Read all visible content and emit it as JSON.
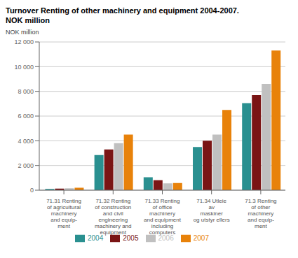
{
  "chart_data": {
    "type": "bar",
    "title": "Turnover Renting of other machinery and equipment 2004-2007.",
    "subtitle": "NOK million",
    "ylabel": "NOK million",
    "categories": [
      "71.31 Renting\nof agricultural\nmachinery\nand equip-\nment",
      "71.32 Renting\nof construction\nand civil\nengineering\nmachinery and\nequipment",
      "71.33 Renting\nof office\nmachinery\nand equipment\nincluding\ncomputers",
      "71.34 Utleie\nav\nmaskiner\nog utstyr ellers",
      "71.3 Renting\nof other\nmachinery\nand equip-\nment"
    ],
    "series": [
      {
        "name": "2004",
        "color": "#2a9090",
        "values": [
          100,
          2850,
          1050,
          3500,
          7050
        ]
      },
      {
        "name": "2005",
        "color": "#7a1515",
        "values": [
          130,
          3300,
          800,
          4000,
          7700
        ]
      },
      {
        "name": "2006",
        "color": "#c0c0c0",
        "values": [
          160,
          3800,
          550,
          4500,
          8600
        ]
      },
      {
        "name": "2007",
        "color": "#e8820a",
        "values": [
          200,
          4500,
          580,
          6500,
          11300
        ]
      }
    ],
    "ylim": [
      0,
      12000
    ],
    "yticks": [
      0,
      {
        "value": 2000,
        "label": "2 000"
      },
      {
        "value": 4000,
        "label": "4 000"
      },
      {
        "value": 6000,
        "label": "6 000"
      },
      {
        "value": 8000,
        "label": "8 000"
      },
      {
        "value": 10000,
        "label": "10 000"
      },
      {
        "value": 12000,
        "label": "12 000"
      }
    ],
    "grid": true,
    "legend": "bottom"
  }
}
